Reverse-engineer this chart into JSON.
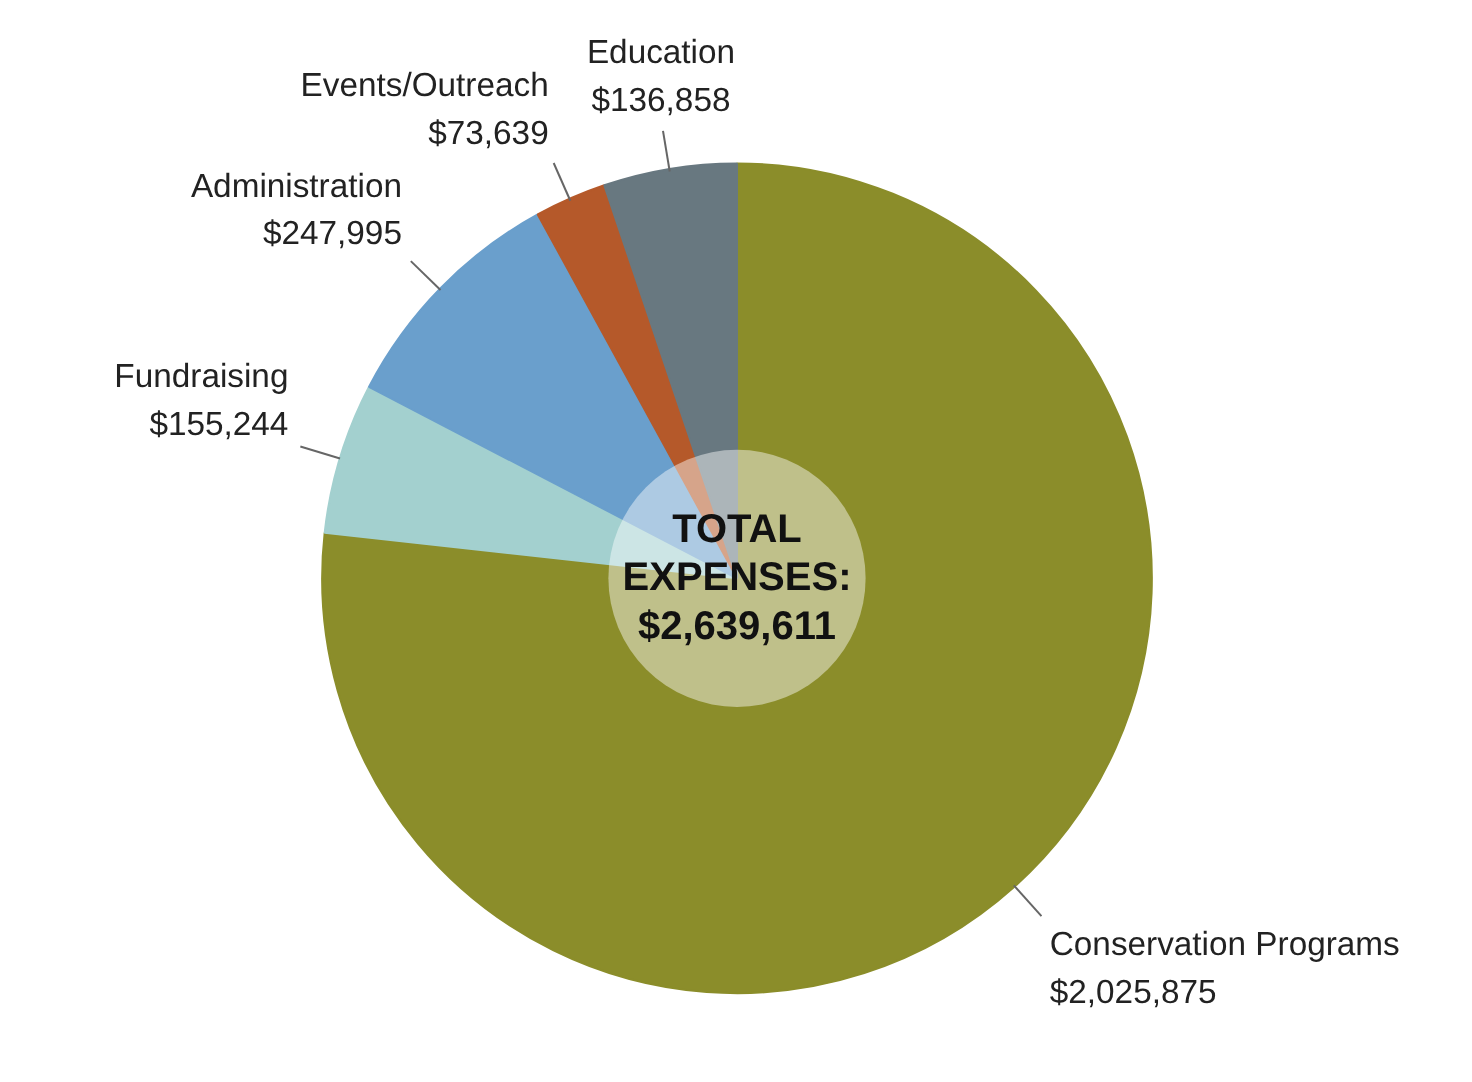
{
  "chart_data": {
    "type": "donut",
    "categories": [
      "Conservation Programs",
      "Fundraising",
      "Administration",
      "Events/Outreach",
      "Education"
    ],
    "values": [
      2025875,
      155244,
      247995,
      73639,
      136858
    ],
    "colors": [
      "#8b8d2a",
      "#a3d0cf",
      "#6a9fcc",
      "#b5592a",
      "#687880"
    ],
    "value_labels": [
      "$2,025,875",
      "$155,244",
      "$247,995",
      "$73,639",
      "$136,858"
    ],
    "annotations": [
      "TOTAL EXPENSES: $2,639,611"
    ]
  }
}
